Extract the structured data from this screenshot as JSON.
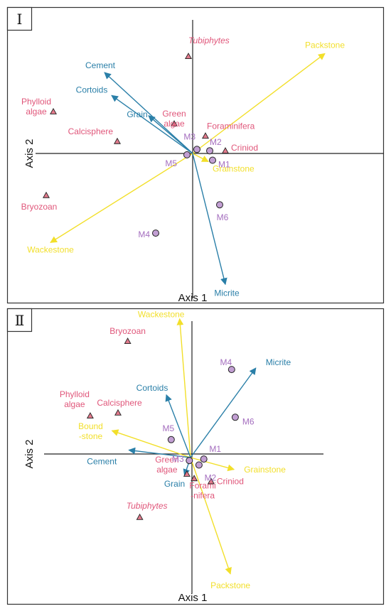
{
  "colors": {
    "yellow": "#f2df2a",
    "blue": "#2a7fa8",
    "pink": "#e0567a",
    "purple": "#a56fbf",
    "marker_fill": "#c29fd3",
    "triangle_fill": "#e27a8c",
    "dark": "#222222"
  },
  "chart_data": [
    {
      "type": "scatter",
      "panel_label": "Ⅰ",
      "xlabel": "Axis 1",
      "ylabel": "Axis 2",
      "arrows": [
        {
          "label": "Packstone",
          "group": "yellow",
          "dx": 0.93,
          "dy": 0.74
        },
        {
          "label": "Wackestone",
          "group": "yellow",
          "dx": -1.0,
          "dy": -0.66
        },
        {
          "label": "Grainstone",
          "group": "yellow",
          "dx": 0.11,
          "dy": -0.06
        },
        {
          "label": "Cement",
          "group": "blue",
          "dx": -0.62,
          "dy": 0.6
        },
        {
          "label": "Cortoids",
          "group": "blue",
          "dx": -0.57,
          "dy": 0.43
        },
        {
          "label": "Grain",
          "group": "blue",
          "dx": -0.31,
          "dy": 0.28
        },
        {
          "label": "Micrite",
          "group": "blue",
          "dx": 0.23,
          "dy": -0.97
        }
      ],
      "taxa": [
        {
          "label": "Tubiphytes",
          "italic": true,
          "x": -0.03,
          "y": 0.72
        },
        {
          "label": "Phylloid algae",
          "italic": false,
          "x": -0.98,
          "y": 0.31
        },
        {
          "label": "Calcisphere",
          "italic": false,
          "x": -0.53,
          "y": 0.09
        },
        {
          "label": "Green algae",
          "italic": false,
          "x": -0.13,
          "y": 0.22
        },
        {
          "label": "Foraminifera",
          "italic": false,
          "x": 0.09,
          "y": 0.13
        },
        {
          "label": "Criniod",
          "italic": false,
          "x": 0.23,
          "y": 0.02
        },
        {
          "label": "Bryozoan",
          "italic": false,
          "x": -1.03,
          "y": -0.31
        }
      ],
      "samples": [
        {
          "label": "M1",
          "x": 0.14,
          "y": -0.05
        },
        {
          "label": "M2",
          "x": 0.12,
          "y": 0.02
        },
        {
          "label": "M3",
          "x": 0.03,
          "y": 0.03
        },
        {
          "label": "M4",
          "x": -0.26,
          "y": -0.59
        },
        {
          "label": "M5",
          "x": -0.04,
          "y": -0.01
        },
        {
          "label": "M6",
          "x": 0.19,
          "y": -0.38
        }
      ]
    },
    {
      "type": "scatter",
      "panel_label": "Ⅱ",
      "xlabel": "Axis 1",
      "ylabel": "Axis 2",
      "arrows": [
        {
          "label": "Wackestone",
          "group": "yellow",
          "dx": -0.09,
          "dy": 0.93
        },
        {
          "label": "Bound -stone",
          "group": "yellow",
          "dx": -0.65,
          "dy": 0.18
        },
        {
          "label": "Grainstone",
          "group": "yellow",
          "dx": 0.36,
          "dy": -0.08
        },
        {
          "label": "Packstone",
          "group": "yellow",
          "dx": 0.33,
          "dy": -0.78
        },
        {
          "label": "Cortoids",
          "group": "blue",
          "dx": -0.2,
          "dy": 0.42
        },
        {
          "label": "Micrite",
          "group": "blue",
          "dx": 0.54,
          "dy": 0.6
        },
        {
          "label": "Cement",
          "group": "blue",
          "dx": -0.51,
          "dy": 0.05
        },
        {
          "label": "Grain",
          "group": "blue",
          "dx": -0.05,
          "dy": -0.12
        }
      ],
      "taxa": [
        {
          "label": "Bryozoan",
          "italic": false,
          "x": -0.52,
          "y": 0.78
        },
        {
          "label": "Phylloid algae",
          "italic": false,
          "x": -0.83,
          "y": 0.28
        },
        {
          "label": "Calcisphere",
          "italic": false,
          "x": -0.6,
          "y": 0.3
        },
        {
          "label": "Green algae",
          "italic": false,
          "x": -0.03,
          "y": -0.11
        },
        {
          "label": "Forami -nifera",
          "italic": false,
          "x": 0.03,
          "y": -0.14
        },
        {
          "label": "Criniod",
          "italic": false,
          "x": 0.17,
          "y": -0.16
        },
        {
          "label": "Tubiphytes",
          "italic": true,
          "x": -0.42,
          "y": -0.4
        }
      ],
      "samples": [
        {
          "label": "M1",
          "x": 0.11,
          "y": -0.01
        },
        {
          "label": "M2",
          "x": 0.07,
          "y": -0.05
        },
        {
          "label": "M3",
          "x": -0.01,
          "y": -0.02
        },
        {
          "label": "M4",
          "x": 0.34,
          "y": 0.59
        },
        {
          "label": "M5",
          "x": -0.16,
          "y": 0.12
        },
        {
          "label": "M6",
          "x": 0.37,
          "y": 0.27
        }
      ]
    }
  ]
}
